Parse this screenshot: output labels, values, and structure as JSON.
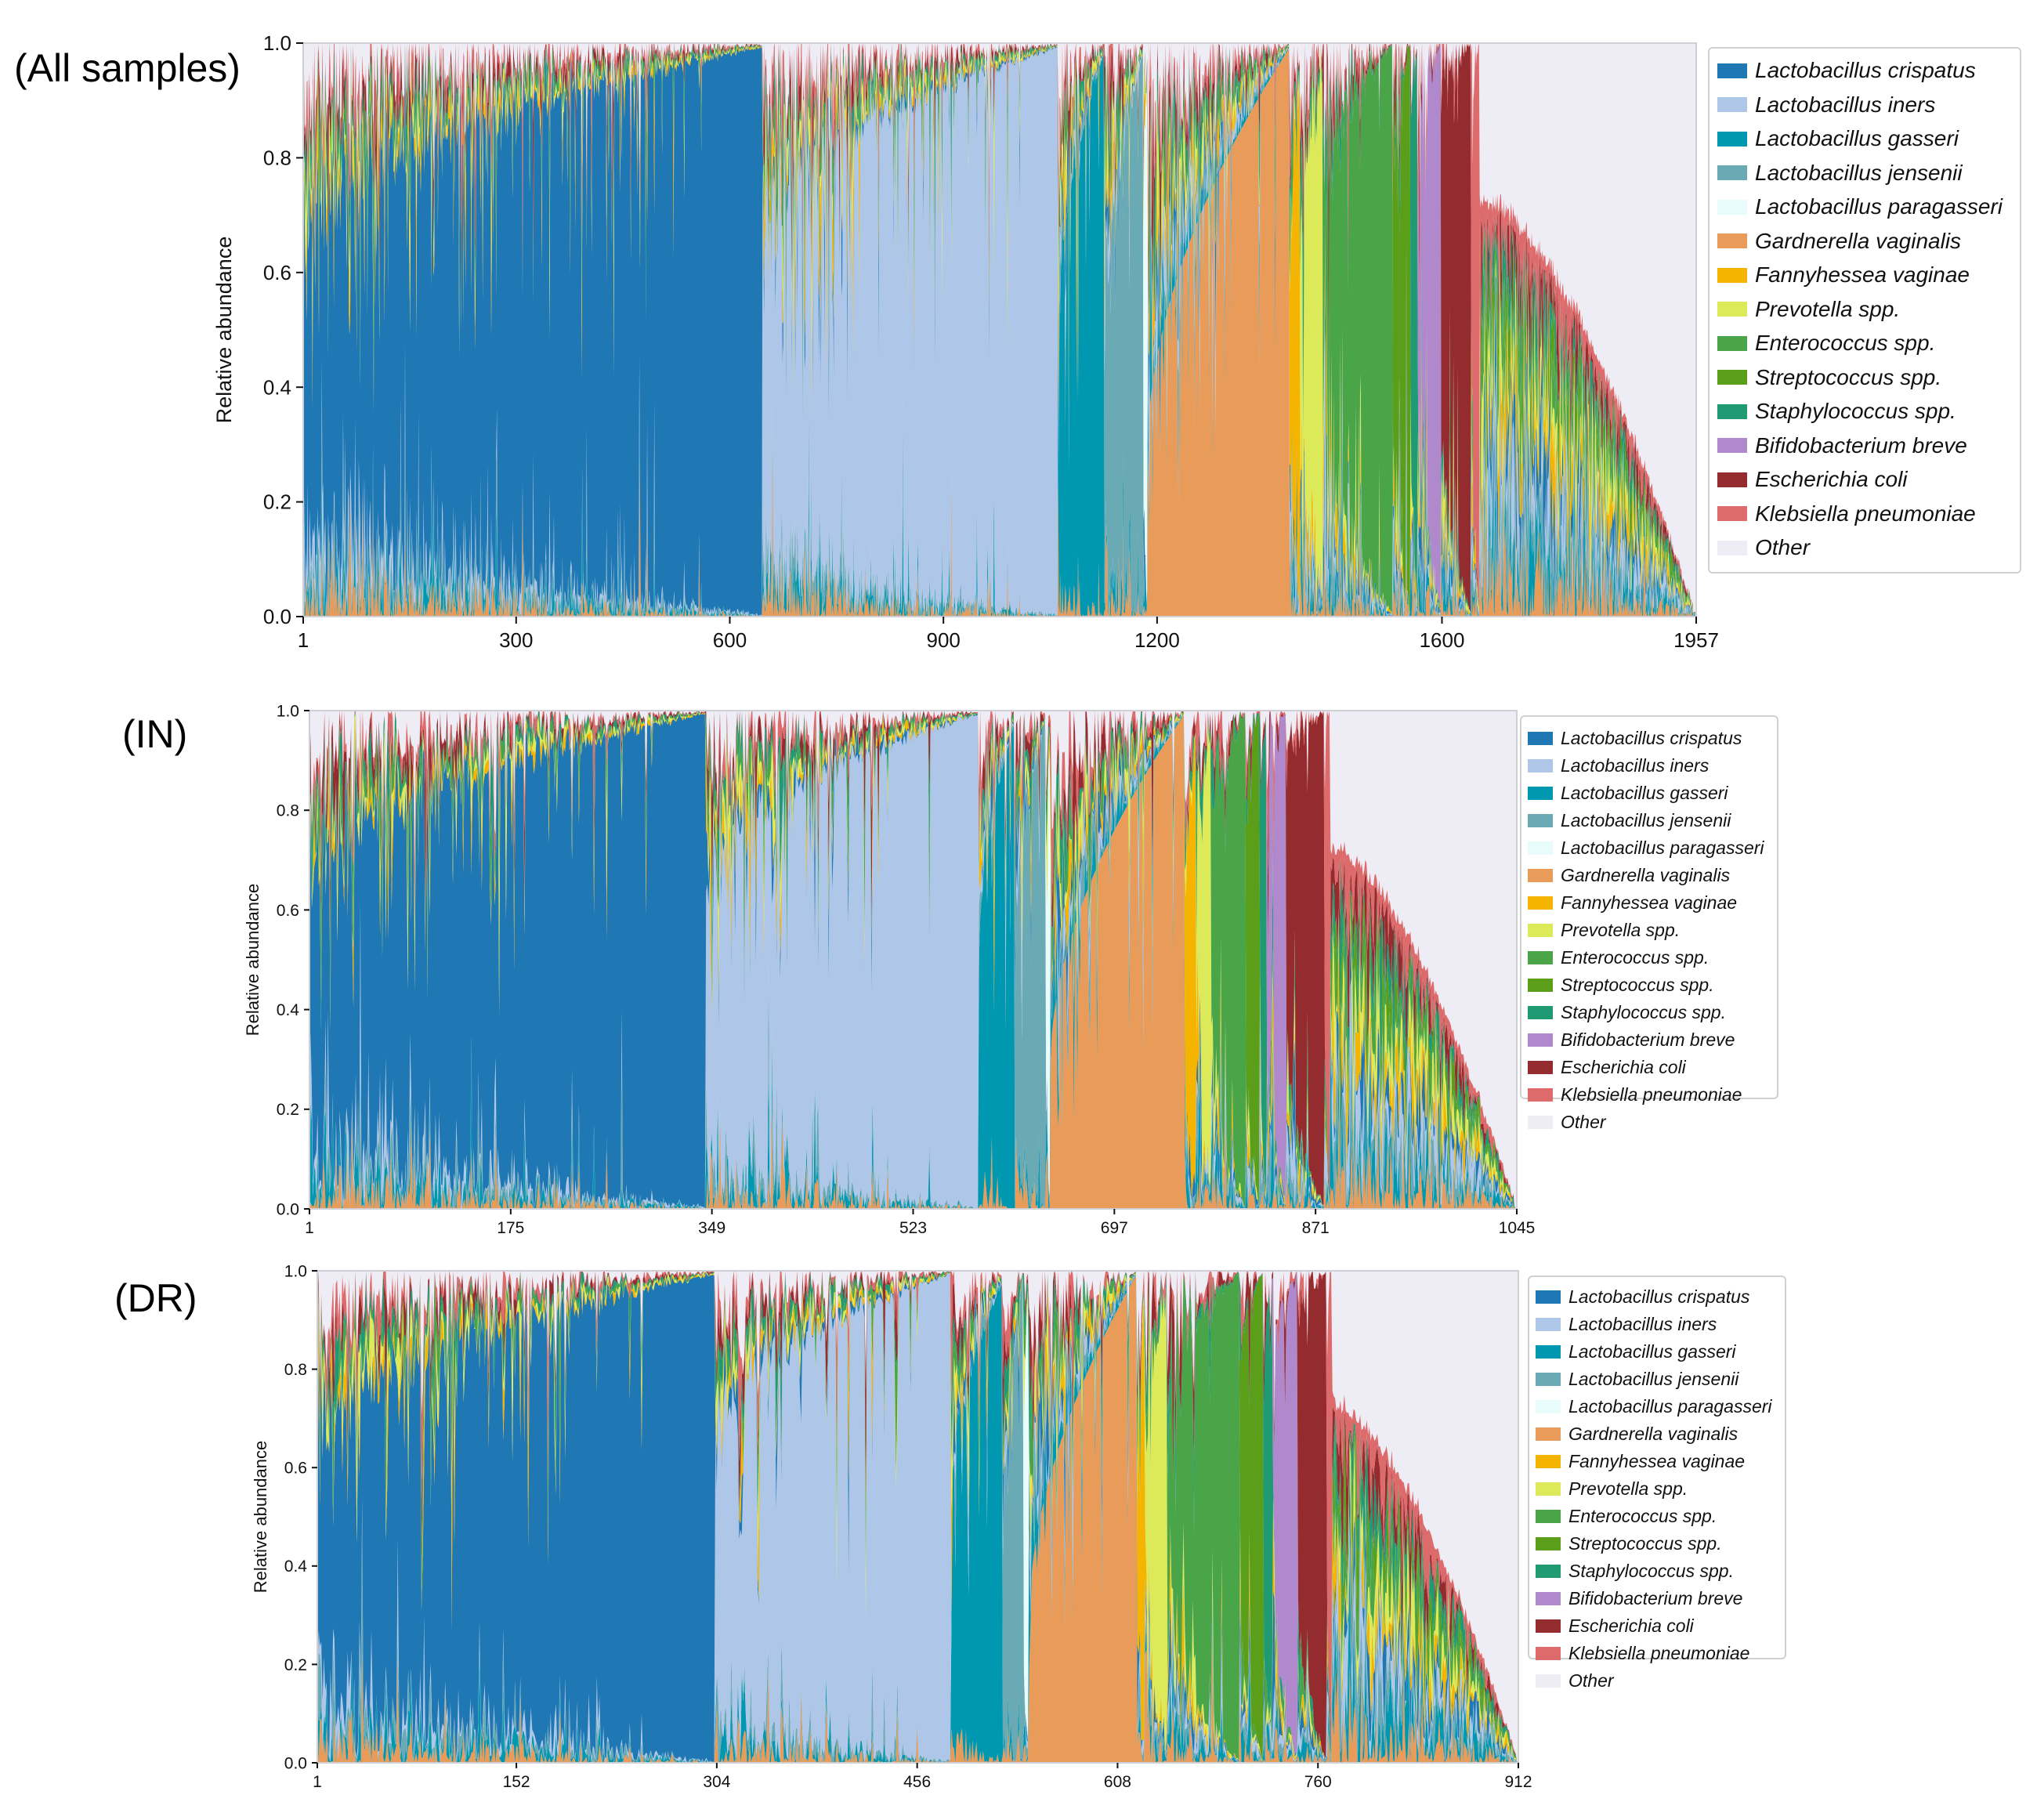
{
  "figure": {
    "panel_labels": [
      "(All samples)",
      "(IN)",
      "(DR)"
    ]
  },
  "legend": {
    "entries": [
      {
        "label": "Lactobacillus crispatus",
        "color": "#1f77b4"
      },
      {
        "label": "Lactobacillus iners",
        "color": "#aec7e8"
      },
      {
        "label": "Lactobacillus gasseri",
        "color": "#0097b0"
      },
      {
        "label": "Lactobacillus jensenii",
        "color": "#6aaab5"
      },
      {
        "label": "Lactobacillus paragasseri",
        "color": "#e8fcfc"
      },
      {
        "label": "Gardnerella vaginalis",
        "color": "#e99b5a"
      },
      {
        "label": "Fannyhessea vaginae",
        "color": "#f5b400"
      },
      {
        "label": "Prevotella spp.",
        "color": "#dcea5a"
      },
      {
        "label": "Enterococcus spp.",
        "color": "#49a547"
      },
      {
        "label": "Streptococcus spp.",
        "color": "#5a9e1a"
      },
      {
        "label": "Staphylococcus spp.",
        "color": "#1f9a72"
      },
      {
        "label": "Bifidobacterium breve",
        "color": "#b088cc"
      },
      {
        "label": "Escherichia coli",
        "color": "#942b2e"
      },
      {
        "label": "Klebsiella pneumoniae",
        "color": "#de6b6b"
      },
      {
        "label": "Other",
        "color": "#eeedf6"
      }
    ]
  },
  "chart_data": [
    {
      "type": "area",
      "stacked": true,
      "title": "(All samples)",
      "xlabel": "",
      "ylabel": "Relative abundance",
      "n_samples": 1957,
      "xlim": [
        1,
        1957
      ],
      "ylim": [
        0.0,
        1.0
      ],
      "xticks": [
        1,
        300,
        600,
        900,
        1200,
        1600,
        1957
      ],
      "yticks": [
        "0.0",
        "0.2",
        "0.4",
        "0.6",
        "0.8",
        "1.0"
      ],
      "legend_position": "right",
      "grid": false,
      "dominance_groups": [
        {
          "dominant": "Lactobacillus crispatus",
          "start": 1,
          "end": 645,
          "dominant_abundance": [
            0.55,
            0.99
          ]
        },
        {
          "dominant": "Lactobacillus iners",
          "start": 646,
          "end": 1060,
          "dominant_abundance": [
            0.6,
            0.99
          ]
        },
        {
          "dominant": "Lactobacillus gasseri",
          "start": 1061,
          "end": 1125,
          "dominant_abundance": [
            0.5,
            0.98
          ]
        },
        {
          "dominant": "Lactobacillus jensenii",
          "start": 1126,
          "end": 1180,
          "dominant_abundance": [
            0.4,
            0.98
          ]
        },
        {
          "dominant": "Lactobacillus paragasseri",
          "start": 1181,
          "end": 1186,
          "dominant_abundance": [
            0.5,
            0.9
          ]
        },
        {
          "dominant": "Gardnerella vaginalis",
          "start": 1187,
          "end": 1385,
          "dominant_abundance": [
            0.3,
            0.99
          ]
        },
        {
          "dominant": "Fannyhessea vaginae",
          "start": 1386,
          "end": 1400,
          "dominant_abundance": [
            0.35,
            0.9
          ]
        },
        {
          "dominant": "Prevotella spp.",
          "start": 1401,
          "end": 1432,
          "dominant_abundance": [
            0.35,
            0.9
          ]
        },
        {
          "dominant": "Enterococcus spp.",
          "start": 1433,
          "end": 1530,
          "dominant_abundance": [
            0.45,
            0.99
          ]
        },
        {
          "dominant": "Streptococcus spp.",
          "start": 1531,
          "end": 1555,
          "dominant_abundance": [
            0.5,
            0.99
          ]
        },
        {
          "dominant": "Staphylococcus spp.",
          "start": 1556,
          "end": 1565,
          "dominant_abundance": [
            0.5,
            0.95
          ]
        },
        {
          "dominant": "Bifidobacterium breve",
          "start": 1566,
          "end": 1598,
          "dominant_abundance": [
            0.5,
            0.98
          ]
        },
        {
          "dominant": "Escherichia coli",
          "start": 1599,
          "end": 1640,
          "dominant_abundance": [
            0.6,
            0.99
          ]
        },
        {
          "dominant": "Klebsiella pneumoniae",
          "start": 1641,
          "end": 1652,
          "dominant_abundance": [
            0.5,
            0.98
          ]
        },
        {
          "dominant": "mixed",
          "start": 1653,
          "end": 1957,
          "total_abundance": [
            0.72,
            0.0
          ]
        }
      ]
    },
    {
      "type": "area",
      "stacked": true,
      "title": "(IN)",
      "xlabel": "",
      "ylabel": "Relative abundance",
      "n_samples": 1045,
      "xlim": [
        1,
        1045
      ],
      "ylim": [
        0.0,
        1.0
      ],
      "xticks": [
        1,
        175,
        349,
        523,
        697,
        871,
        1045
      ],
      "yticks": [
        "0.0",
        "0.2",
        "0.4",
        "0.6",
        "0.8",
        "1.0"
      ],
      "legend_position": "right",
      "grid": false,
      "dominance_groups": [
        {
          "dominant": "Lactobacillus crispatus",
          "start": 1,
          "end": 343,
          "dominant_abundance": [
            0.55,
            0.99
          ]
        },
        {
          "dominant": "Lactobacillus iners",
          "start": 344,
          "end": 579,
          "dominant_abundance": [
            0.6,
            0.99
          ]
        },
        {
          "dominant": "Lactobacillus gasseri",
          "start": 580,
          "end": 610,
          "dominant_abundance": [
            0.5,
            0.97
          ]
        },
        {
          "dominant": "Lactobacillus jensenii",
          "start": 611,
          "end": 637,
          "dominant_abundance": [
            0.4,
            0.98
          ]
        },
        {
          "dominant": "Lactobacillus paragasseri",
          "start": 638,
          "end": 641,
          "dominant_abundance": [
            0.5,
            0.9
          ]
        },
        {
          "dominant": "Gardnerella vaginalis",
          "start": 642,
          "end": 757,
          "dominant_abundance": [
            0.3,
            0.99
          ]
        },
        {
          "dominant": "Fannyhessea vaginae",
          "start": 758,
          "end": 767,
          "dominant_abundance": [
            0.35,
            0.9
          ]
        },
        {
          "dominant": "Prevotella spp.",
          "start": 768,
          "end": 780,
          "dominant_abundance": [
            0.35,
            0.9
          ]
        },
        {
          "dominant": "Enterococcus spp.",
          "start": 781,
          "end": 810,
          "dominant_abundance": [
            0.45,
            0.99
          ]
        },
        {
          "dominant": "Streptococcus spp.",
          "start": 811,
          "end": 822,
          "dominant_abundance": [
            0.5,
            0.99
          ]
        },
        {
          "dominant": "Staphylococcus spp.",
          "start": 823,
          "end": 828,
          "dominant_abundance": [
            0.5,
            0.95
          ]
        },
        {
          "dominant": "Bifidobacterium breve",
          "start": 829,
          "end": 845,
          "dominant_abundance": [
            0.5,
            0.98
          ]
        },
        {
          "dominant": "Escherichia coli",
          "start": 846,
          "end": 878,
          "dominant_abundance": [
            0.6,
            0.99
          ]
        },
        {
          "dominant": "Klebsiella pneumoniae",
          "start": 879,
          "end": 883,
          "dominant_abundance": [
            0.5,
            0.98
          ]
        },
        {
          "dominant": "mixed",
          "start": 884,
          "end": 1045,
          "total_abundance": [
            0.72,
            0.0
          ]
        }
      ]
    },
    {
      "type": "area",
      "stacked": true,
      "title": "(DR)",
      "xlabel": "",
      "ylabel": "Relative abundance",
      "n_samples": 912,
      "xlim": [
        1,
        912
      ],
      "ylim": [
        0.0,
        1.0
      ],
      "xticks": [
        1,
        152,
        304,
        456,
        608,
        760,
        912
      ],
      "yticks": [
        "0.0",
        "0.2",
        "0.4",
        "0.6",
        "0.8",
        "1.0"
      ],
      "legend_position": "right",
      "grid": false,
      "dominance_groups": [
        {
          "dominant": "Lactobacillus crispatus",
          "start": 1,
          "end": 302,
          "dominant_abundance": [
            0.55,
            0.99
          ]
        },
        {
          "dominant": "Lactobacillus iners",
          "start": 303,
          "end": 481,
          "dominant_abundance": [
            0.6,
            0.99
          ]
        },
        {
          "dominant": "Lactobacillus gasseri",
          "start": 482,
          "end": 520,
          "dominant_abundance": [
            0.5,
            0.97
          ]
        },
        {
          "dominant": "Lactobacillus jensenii",
          "start": 521,
          "end": 536,
          "dominant_abundance": [
            0.4,
            0.98
          ]
        },
        {
          "dominant": "Lactobacillus paragasseri",
          "start": 537,
          "end": 540,
          "dominant_abundance": [
            0.5,
            0.9
          ]
        },
        {
          "dominant": "Gardnerella vaginalis",
          "start": 541,
          "end": 622,
          "dominant_abundance": [
            0.3,
            0.99
          ]
        },
        {
          "dominant": "Fannyhessea vaginae",
          "start": 623,
          "end": 628,
          "dominant_abundance": [
            0.35,
            0.9
          ]
        },
        {
          "dominant": "Prevotella spp.",
          "start": 629,
          "end": 645,
          "dominant_abundance": [
            0.35,
            0.9
          ]
        },
        {
          "dominant": "Enterococcus spp.",
          "start": 646,
          "end": 700,
          "dominant_abundance": [
            0.45,
            0.99
          ]
        },
        {
          "dominant": "Streptococcus spp.",
          "start": 701,
          "end": 718,
          "dominant_abundance": [
            0.5,
            0.99
          ]
        },
        {
          "dominant": "Staphylococcus spp.",
          "start": 719,
          "end": 725,
          "dominant_abundance": [
            0.5,
            0.95
          ]
        },
        {
          "dominant": "Bifidobacterium breve",
          "start": 726,
          "end": 744,
          "dominant_abundance": [
            0.5,
            0.98
          ]
        },
        {
          "dominant": "Escherichia coli",
          "start": 745,
          "end": 766,
          "dominant_abundance": [
            0.6,
            0.99
          ]
        },
        {
          "dominant": "Klebsiella pneumoniae",
          "start": 767,
          "end": 770,
          "dominant_abundance": [
            0.5,
            0.98
          ]
        },
        {
          "dominant": "mixed",
          "start": 771,
          "end": 912,
          "total_abundance": [
            0.72,
            0.0
          ]
        }
      ]
    }
  ]
}
